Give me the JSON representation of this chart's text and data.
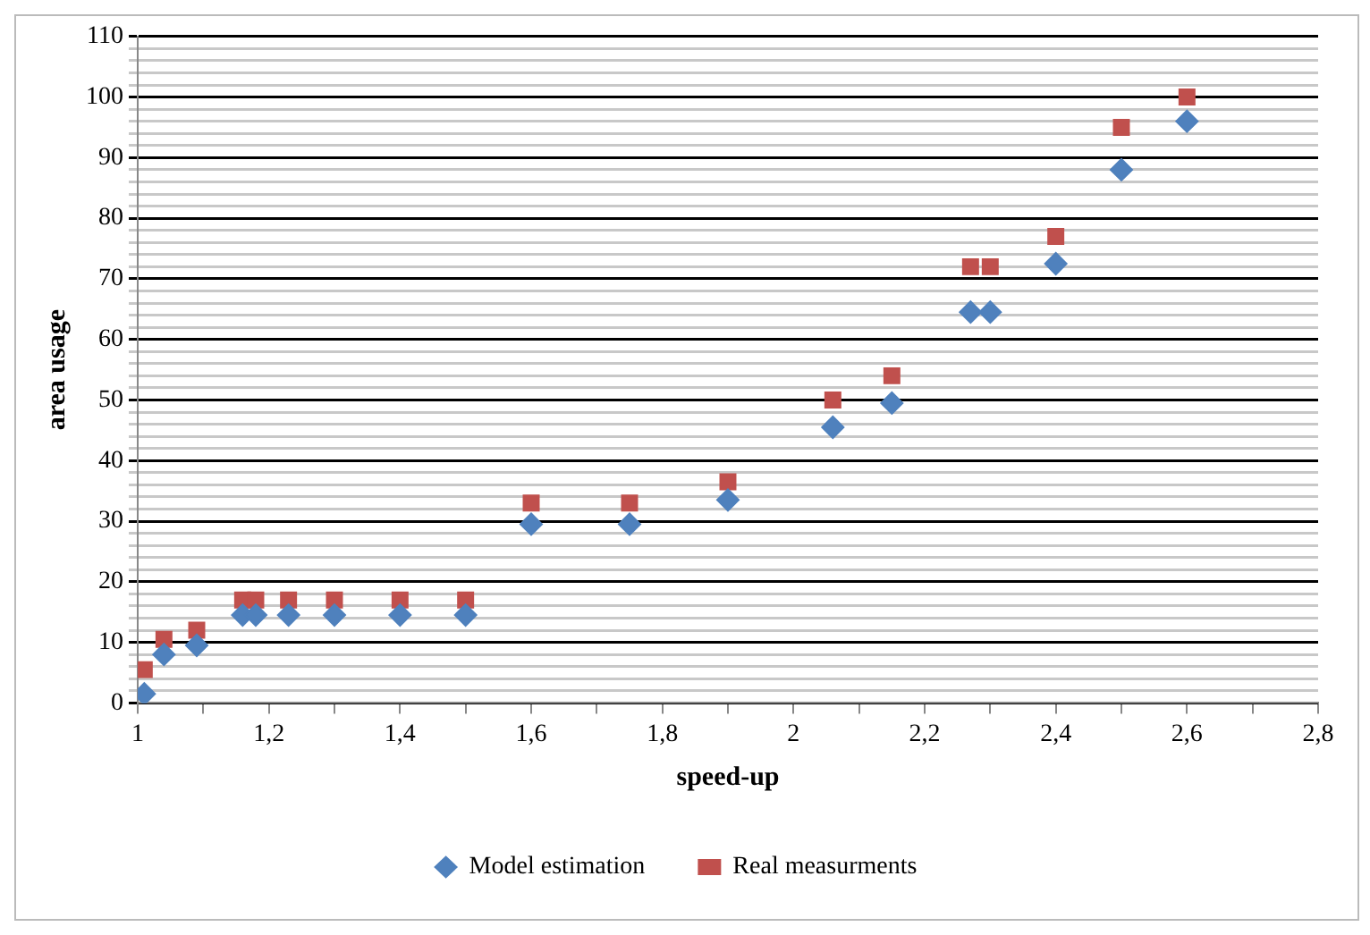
{
  "chart_data": {
    "type": "scatter",
    "xlabel": "speed-up",
    "ylabel": "area usage",
    "x": [
      1.01,
      1.04,
      1.09,
      1.16,
      1.18,
      1.23,
      1.3,
      1.4,
      1.5,
      1.6,
      1.75,
      1.9,
      2.06,
      2.15,
      2.27,
      2.3,
      2.4,
      2.5,
      2.6
    ],
    "series": [
      {
        "name": "Model estimation",
        "color": "#4f81bd",
        "marker": "diamond",
        "values": [
          1.5,
          8,
          9.5,
          14.5,
          14.5,
          14.5,
          14.5,
          14.5,
          14.5,
          29.5,
          29.5,
          33.5,
          45.5,
          49.5,
          64.5,
          64.5,
          72.5,
          88,
          96
        ]
      },
      {
        "name": "Real measurments",
        "color": "#c0504d",
        "marker": "square",
        "values": [
          5.5,
          10.5,
          12,
          17,
          17,
          17,
          17,
          17,
          17,
          33,
          33,
          36.5,
          50,
          54,
          72,
          72,
          77,
          95,
          100
        ]
      }
    ],
    "xlim": [
      1,
      2.8
    ],
    "xticks": [
      1,
      {
        "value": 1.1,
        "label": null
      },
      {
        "value": 1.2,
        "label": "1,2"
      },
      {
        "value": 1.3,
        "label": null
      },
      {
        "value": 1.4,
        "label": "1,4"
      },
      {
        "value": 1.5,
        "label": null
      },
      {
        "value": 1.6,
        "label": "1,6"
      },
      {
        "value": 1.7,
        "label": null
      },
      {
        "value": 1.8,
        "label": "1,8"
      },
      {
        "value": 1.9,
        "label": null
      },
      2,
      {
        "value": 2.1,
        "label": null
      },
      {
        "value": 2.2,
        "label": "2,2"
      },
      {
        "value": 2.3,
        "label": null
      },
      {
        "value": 2.4,
        "label": "2,4"
      },
      {
        "value": 2.5,
        "label": null
      },
      {
        "value": 2.6,
        "label": "2,6"
      },
      {
        "value": 2.7,
        "label": null
      },
      {
        "value": 2.8,
        "label": "2,8"
      }
    ],
    "ylim": [
      0,
      110
    ],
    "yticks": [
      0,
      {
        "value": 2,
        "label": null
      },
      {
        "value": 4,
        "label": null
      },
      {
        "value": 6,
        "label": null
      },
      {
        "value": 8,
        "label": null
      },
      10,
      {
        "value": 12,
        "label": null
      },
      {
        "value": 14,
        "label": null
      },
      {
        "value": 16,
        "label": null
      },
      {
        "value": 18,
        "label": null
      },
      20,
      {
        "value": 22,
        "label": null
      },
      {
        "value": 24,
        "label": null
      },
      {
        "value": 26,
        "label": null
      },
      {
        "value": 28,
        "label": null
      },
      30,
      {
        "value": 32,
        "label": null
      },
      {
        "value": 34,
        "label": null
      },
      {
        "value": 36,
        "label": null
      },
      {
        "value": 38,
        "label": null
      },
      40,
      {
        "value": 42,
        "label": null
      },
      {
        "value": 44,
        "label": null
      },
      {
        "value": 46,
        "label": null
      },
      {
        "value": 48,
        "label": null
      },
      50,
      {
        "value": 52,
        "label": null
      },
      {
        "value": 54,
        "label": null
      },
      {
        "value": 56,
        "label": null
      },
      {
        "value": 58,
        "label": null
      },
      60,
      {
        "value": 62,
        "label": null
      },
      {
        "value": 64,
        "label": null
      },
      {
        "value": 66,
        "label": null
      },
      {
        "value": 68,
        "label": null
      },
      70,
      {
        "value": 72,
        "label": null
      },
      {
        "value": 74,
        "label": null
      },
      {
        "value": 76,
        "label": null
      },
      {
        "value": 78,
        "label": null
      },
      80,
      {
        "value": 82,
        "label": null
      },
      {
        "value": 84,
        "label": null
      },
      {
        "value": 86,
        "label": null
      },
      {
        "value": 88,
        "label": null
      },
      90,
      {
        "value": 92,
        "label": null
      },
      {
        "value": 94,
        "label": null
      },
      {
        "value": 96,
        "label": null
      },
      {
        "value": 98,
        "label": null
      },
      100,
      {
        "value": 102,
        "label": null
      },
      {
        "value": 104,
        "label": null
      },
      {
        "value": 106,
        "label": null
      },
      {
        "value": 108,
        "label": null
      },
      110
    ],
    "grid": "y",
    "legend": "bottom"
  }
}
